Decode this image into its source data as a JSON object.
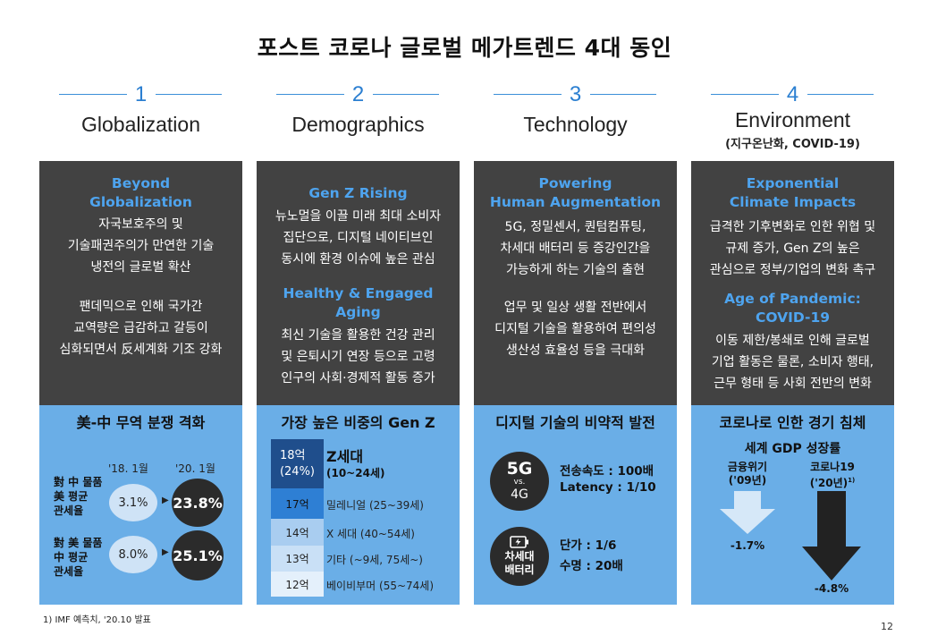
{
  "title": "포스트 코로나 글로벌 메가트렌드 4대 동인",
  "columns": [
    {
      "num": "1",
      "title": "Globalization",
      "sub": "",
      "blocks": [
        {
          "heading": "Beyond\nGlobalization",
          "text": "자국보호주의 및\n기술패권주의가 만연한 기술\n냉전의 글로벌 확산"
        },
        {
          "heading": "",
          "text": "팬데믹으로 인해 국가간\n교역량은 급감하고 갈등이\n심화되면서 反세계화 기조 강화"
        }
      ],
      "bottom_title": "美-中 무역 분쟁 격화"
    },
    {
      "num": "2",
      "title": "Demographics",
      "sub": "",
      "blocks": [
        {
          "heading": "Gen Z Rising",
          "text": "뉴노멀을 이끌 미래 최대 소비자\n집단으로, 디지털 네이티브인\n동시에 환경 이슈에 높은 관심"
        },
        {
          "heading": "Healthy & Engaged\nAging",
          "text": "최신 기술을 활용한 건강 관리\n및 은퇴시기 연장 등으로 고령\n인구의 사회·경제적 활동 증가"
        }
      ],
      "bottom_title": "가장 높은 비중의 Gen Z"
    },
    {
      "num": "3",
      "title": "Technology",
      "sub": "",
      "blocks": [
        {
          "heading": "Powering\nHuman Augmentation",
          "text": "5G, 정밀센서, 퀀텀컴퓨팅,\n차세대 배터리 등 증강인간을\n가능하게 하는 기술의 출현"
        },
        {
          "heading": "",
          "text": "업무 및 일상 생활 전반에서\n디지털 기술을 활용하여 편의성\n생산성 효율성 등을 극대화"
        }
      ],
      "bottom_title": "디지털 기술의 비약적 발전"
    },
    {
      "num": "4",
      "title": "Environment",
      "sub": "(지구온난화, COVID-19)",
      "blocks": [
        {
          "heading": "Exponential\nClimate Impacts",
          "text": "급격한 기후변화로 인한 위협 및\n규제 증가, Gen Z의 높은\n관심으로 정부/기업의 변화 촉구"
        },
        {
          "heading": "Age of Pandemic:\nCOVID-19",
          "text": "이동 제한/봉쇄로 인해 글로벌\n기업 활동은 물론, 소비자 행태,\n근무 형태 등 사회 전반의 변화"
        }
      ],
      "bottom_title": "코로나로 인한 경기 침체"
    }
  ],
  "trade": {
    "year1": "'18. 1월",
    "year2": "'20. 1월",
    "rows": [
      {
        "label": "對 中 물품\n美 평균\n관세율",
        "v1": "3.1%",
        "v2": "23.8%"
      },
      {
        "label": "對 美 물품\n中 평균\n관세율",
        "v1": "8.0%",
        "v2": "25.1%"
      }
    ]
  },
  "genz": {
    "rows": [
      {
        "value": "18억\n(24%)",
        "label": "Z세대",
        "sub": "(10~24세)",
        "color": "#1f4e8c"
      },
      {
        "value": "17억",
        "label": "밀레니얼 (25~39세)",
        "color": "#2e7fd4"
      },
      {
        "value": "14억",
        "label": "X 세대 (40~54세)",
        "color": "#a9cdf0"
      },
      {
        "value": "13억",
        "label": "기타 (~9세, 75세~)",
        "color": "#c9e0f6"
      },
      {
        "value": "12억",
        "label": "베이비부머 (55~74세)",
        "color": "#e4f0fb"
      }
    ]
  },
  "tech": {
    "c1_big": "5G",
    "c1_mid": "vs.",
    "c1_small": "4G",
    "t1": "전송속도 : 100배",
    "t2": "Latency : 1/10",
    "c2_label": "차세대\n배터리",
    "t3": "단가 :  1/6",
    "t4": "수명 : 20배",
    "battery_icon": "battery-charging-icon"
  },
  "recession": {
    "heading": "세계 GDP 성장률",
    "left_label": "금융위기\n('09년)",
    "right_label": "코로나19\n('20년)",
    "right_sup": "1)",
    "left_value": "-1.7%",
    "right_value": "-4.8%"
  },
  "footnote": "1) IMF 예측치, '20.10 발표",
  "page": "12"
}
